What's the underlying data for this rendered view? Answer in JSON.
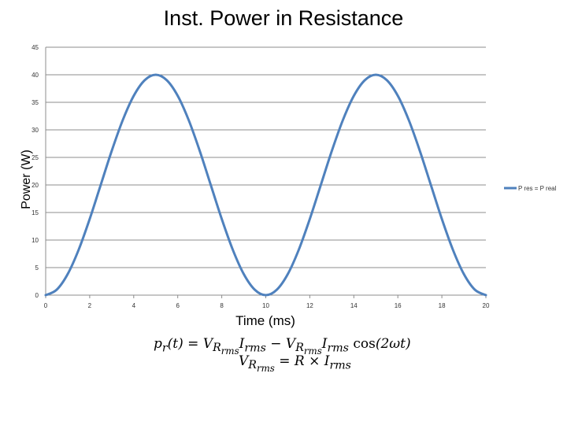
{
  "chart_data": {
    "type": "line",
    "title": "Inst. Power in Resistance",
    "xlabel": "Time (ms)",
    "ylabel": "Power (W)",
    "xlim": [
      0,
      20
    ],
    "ylim": [
      0,
      45
    ],
    "xticks": [
      0,
      2,
      4,
      6,
      8,
      10,
      12,
      14,
      16,
      18,
      20
    ],
    "yticks": [
      0,
      5,
      10,
      15,
      20,
      25,
      30,
      35,
      40,
      45
    ],
    "grid": "horizontal",
    "legend_position": "right",
    "series": [
      {
        "name": "P res = P real",
        "color": "#4F81BD",
        "x": [
          0,
          0.5,
          1,
          1.5,
          2,
          2.5,
          3,
          3.5,
          4,
          4.5,
          5,
          5.5,
          6,
          6.5,
          7,
          7.5,
          8,
          8.5,
          9,
          9.5,
          10,
          10.5,
          11,
          11.5,
          12,
          12.5,
          13,
          13.5,
          14,
          14.5,
          15,
          15.5,
          16,
          16.5,
          17,
          17.5,
          18,
          18.5,
          19,
          19.5,
          20
        ],
        "y": [
          0,
          0.98,
          3.82,
          8.25,
          13.82,
          20,
          26.18,
          31.75,
          36.18,
          39.02,
          40,
          39.02,
          36.18,
          31.75,
          26.18,
          20,
          13.82,
          8.25,
          3.82,
          0.98,
          0,
          0.98,
          3.82,
          8.25,
          13.82,
          20,
          26.18,
          31.75,
          36.18,
          39.02,
          40,
          39.02,
          36.18,
          31.75,
          26.18,
          20,
          13.82,
          8.25,
          3.82,
          0.98,
          0
        ]
      }
    ]
  },
  "formula": {
    "line1": "p_r(t) = V_Rrms I_rms − V_Rrms I_rms cos(2ωt)",
    "line2": "V_Rrms = R × I_rms"
  }
}
